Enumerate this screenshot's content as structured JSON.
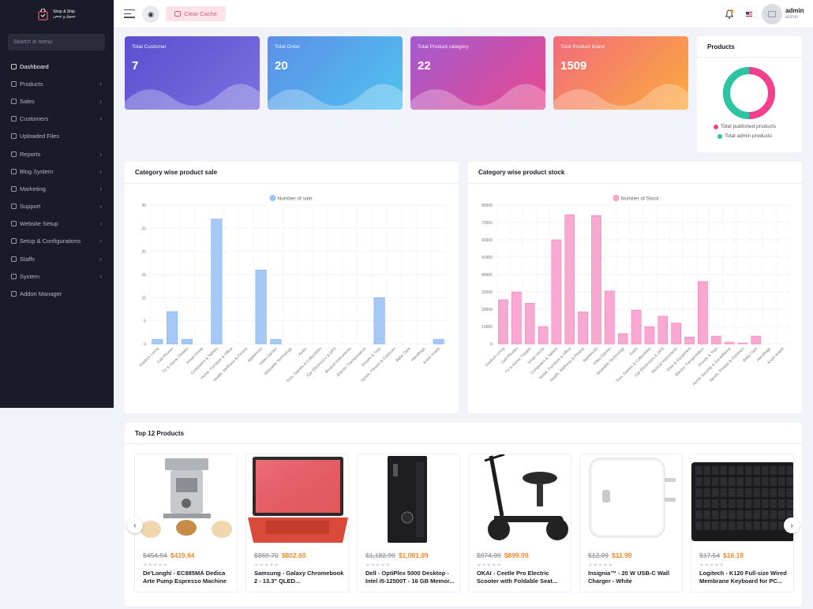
{
  "brand": {
    "line1": "Shop & Ship",
    "line2": "تسوق و شحن"
  },
  "search": {
    "placeholder": "Search in menu"
  },
  "sidebar": {
    "items": [
      {
        "label": "Dashboard",
        "icon": "dashboard-icon",
        "submenu": false,
        "active": true
      },
      {
        "label": "Products",
        "icon": "products-icon",
        "submenu": true
      },
      {
        "label": "Sales",
        "icon": "sales-icon",
        "submenu": true
      },
      {
        "label": "Customers",
        "icon": "customers-icon",
        "submenu": true
      },
      {
        "label": "Uploaded Files",
        "icon": "files-icon",
        "submenu": false
      },
      {
        "label": "Reports",
        "icon": "reports-icon",
        "submenu": true
      },
      {
        "label": "Blog System",
        "icon": "blog-icon",
        "submenu": true
      },
      {
        "label": "Marketing",
        "icon": "marketing-icon",
        "submenu": true
      },
      {
        "label": "Support",
        "icon": "support-icon",
        "submenu": true
      },
      {
        "label": "Website Setup",
        "icon": "website-icon",
        "submenu": true
      },
      {
        "label": "Setup & Configurations",
        "icon": "settings-icon",
        "submenu": true
      },
      {
        "label": "Staffs",
        "icon": "staffs-icon",
        "submenu": true
      },
      {
        "label": "System",
        "icon": "system-icon",
        "submenu": true
      },
      {
        "label": "Addon Manager",
        "icon": "addon-icon",
        "submenu": false
      }
    ]
  },
  "topbar": {
    "clear_cache": "Clear Cache",
    "user_name": "admin",
    "user_role": "admin"
  },
  "stats": [
    {
      "label": "Total Customer",
      "value": "7",
      "from": "#5b4fcf",
      "to": "#7b6fe0"
    },
    {
      "label": "Total Order",
      "value": "20",
      "from": "#5c8fe6",
      "to": "#4fc3f0"
    },
    {
      "label": "Total Product category",
      "value": "22",
      "from": "#a35bd0",
      "to": "#e8498f"
    },
    {
      "label": "Total Product brand",
      "value": "1509",
      "from": "#f26b7e",
      "to": "#fbab3b"
    }
  ],
  "products_card": {
    "title": "Products",
    "legend": [
      {
        "label": "Total published products",
        "color": "#f43f8e"
      },
      {
        "label": "Total admin products",
        "color": "#2ec4a3"
      }
    ]
  },
  "chart_data": [
    {
      "type": "bar",
      "title": "Category wise product sale",
      "legend": "Number of sale",
      "color": "#a5c8f5",
      "border": "#7eaef0",
      "ylim": [
        0,
        30
      ],
      "yticks": [
        0,
        5,
        10,
        15,
        20,
        25,
        30
      ],
      "categories": [
        "Outdoor Living",
        "Cell Phones",
        "TV &amp; Home Theater",
        "Smart Home",
        "Computers &amp; Tablets",
        "Home, Furniture &amp; Office",
        "Health, Wellness &amp; Fitness",
        "Appliances",
        "Video Games",
        "Wearable Technology",
        "Audio",
        "Toys, Games &amp; Collectibles",
        "Car Electronics &amp; GPS",
        "Musical Instruments",
        "Electric Transportation",
        "Drones &amp; Toys",
        "Sports, Fitness &amp; Outdoors",
        "Baby Care",
        "Handbags",
        "Knick Knack"
      ],
      "values": [
        1,
        7,
        1,
        0,
        27,
        0,
        0,
        16,
        1,
        0,
        0,
        0,
        0,
        0,
        0,
        10,
        0,
        0,
        0,
        1
      ],
      "grid": true
    },
    {
      "type": "bar",
      "title": "Category wise product stock",
      "legend": "Number of Stock",
      "color": "#f8a9d2",
      "border": "#f17fbb",
      "ylim": [
        0,
        80000
      ],
      "yticks": [
        0,
        10000,
        20000,
        30000,
        40000,
        50000,
        60000,
        70000,
        80000
      ],
      "categories": [
        "Outdoor Living",
        "Cell Phones",
        "TV &amp; Home Theater",
        "Smart Home",
        "Computers &amp; Tablets",
        "Home, Furniture &amp; Office",
        "Health, Wellness &amp; Fitness",
        "Appliances",
        "Video Games",
        "Wearable Technology",
        "Audio",
        "Toys, Games &amp; Collectibles",
        "Car Electronics &amp; GPS",
        "Musical Instruments",
        "Gear &amp; Equipment",
        "Electric Transportation",
        "Drones &amp; Toys",
        "Home Security &amp; Surveillance",
        "Sports, Fitness &amp; Outdoors",
        "Baby Care",
        "Handbags",
        "Knick Knack"
      ],
      "values": [
        25500,
        30000,
        23500,
        10000,
        60000,
        74500,
        18500,
        74000,
        30500,
        6000,
        19500,
        10000,
        16000,
        12000,
        4000,
        36000,
        4500,
        1000,
        500,
        4500,
        0,
        0
      ],
      "grid": true
    }
  ],
  "top_products": {
    "title": "Top 12 Products",
    "items": [
      {
        "old": "$454.94",
        "new": "$419.94",
        "name": "De'Longhi - EC885MÁ Dedica Arte Pump Espresso Machine ...",
        "img": "espresso"
      },
      {
        "old": "$869.70",
        "new": "$802.80",
        "name": "Samsung - Galaxy Chromebook 2 - 13.3\" QLED...",
        "img": "laptop"
      },
      {
        "old": "$1,182.99",
        "new": "$1,091.99",
        "name": "Dell - OptiPlex 5000 Desktop - Intel i5-12500T - 16 GB Memor...",
        "img": "desktop"
      },
      {
        "old": "$974.99",
        "new": "$899.99",
        "name": "OKAI - Ceetle Pro Electric Scooter with Foldable Seat...",
        "img": "scooter"
      },
      {
        "old": "$12.99",
        "new": "$11.99",
        "name": "Insignia™ - 20 W USB-C Wall Charger - White",
        "img": "charger"
      },
      {
        "old": "$17.54",
        "new": "$16.19",
        "name": "Logitech - K120 Full-size Wired Membrane Keyboard for PC...",
        "img": "keyboard"
      }
    ]
  }
}
